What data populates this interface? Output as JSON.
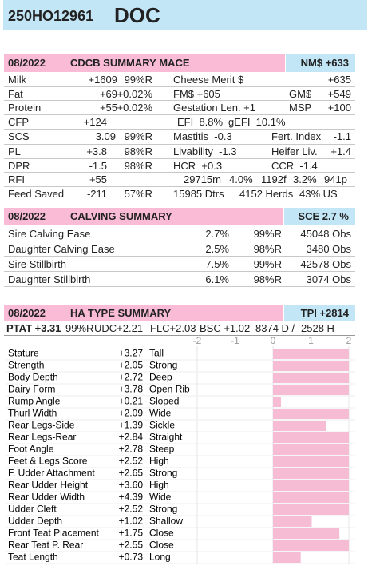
{
  "header": {
    "id": "250HO12961",
    "name": "DOC"
  },
  "mace": {
    "date": "08/2022",
    "title": "CDCB SUMMARY MACE",
    "index": "NM$ +633",
    "rows": [
      [
        "Milk",
        "+1609",
        "99%R",
        "Cheese Merit $",
        "+635"
      ],
      [
        "Fat",
        "+69",
        "+0.02%",
        "FM$ +605",
        "GM$",
        "+549"
      ],
      [
        "Protein",
        "+55",
        "+0.02%",
        "Gestation Len. +1",
        "MSP",
        "+100"
      ],
      [
        "CFP",
        "+124",
        "EFI  8.8%",
        "gEFI  10.1%"
      ],
      [
        "SCS",
        "3.09",
        "99%R",
        "Mastitis  -0.3",
        "Fert. Index",
        "-1.1"
      ],
      [
        "PL",
        "+3.8",
        "98%R",
        "Livability  -1.3",
        "Heifer Liv.",
        "+1.4"
      ],
      [
        "DPR",
        "-1.5",
        "98%R",
        "HCR  +0.3",
        "CCR  -1.4"
      ],
      [
        "RFI",
        "+55",
        "29715m",
        "4.0%",
        "1192f",
        "3.2%",
        "941p"
      ],
      [
        "Feed Saved",
        "-211",
        "57%R",
        "15985 Dtrs",
        "4152 Herds",
        "43% US"
      ]
    ]
  },
  "calving": {
    "date": "08/2022",
    "title": "CALVING SUMMARY",
    "index": "SCE 2.7 %",
    "rows": [
      [
        "Sire Calving Ease",
        "2.7%",
        "99%R",
        "45048 Obs"
      ],
      [
        "Daughter Calving Ease",
        "2.5%",
        "98%R",
        "3480 Obs"
      ],
      [
        "Sire Stillbirth",
        "7.5%",
        "99%R",
        "42578 Obs"
      ],
      [
        "Daughter Stillbirth",
        "6.1%",
        "98%R",
        "3074 Obs"
      ]
    ]
  },
  "type_summary": {
    "date": "08/2022",
    "title": "HA TYPE SUMMARY",
    "index": "TPI +2814",
    "info": [
      "PTAT +3.31",
      "99%R",
      "UDC+2.21",
      "FLC+2.03",
      "BSC +1.02",
      "8374 D /",
      "2528 H"
    ],
    "chart": {
      "type": "bar",
      "xlim": [
        -2,
        2
      ],
      "xticks": [
        -2,
        -1,
        0,
        1,
        2
      ],
      "categories": [
        "Stature",
        "Strength",
        "Body Depth",
        "Dairy Form",
        "Rump Angle",
        "Thurl Width",
        "Rear Legs-Side",
        "Rear Legs-Rear",
        "Foot Angle",
        "Feet & Legs Score",
        "F. Udder Attachment",
        "Rear Udder Height",
        "Rear Udder Width",
        "Udder Cleft",
        "Udder Depth",
        "Front Teat Placement",
        "Rear Teat P. Rear",
        "Teat Length"
      ],
      "values": [
        3.27,
        2.05,
        2.72,
        3.78,
        0.21,
        2.09,
        1.39,
        2.84,
        2.78,
        2.52,
        2.65,
        3.6,
        4.39,
        2.52,
        1.02,
        1.75,
        2.55,
        0.73
      ],
      "value_labels": [
        "+3.27",
        "+2.05",
        "+2.72",
        "+3.78",
        "+0.21",
        "+2.09",
        "+1.39",
        "+2.84",
        "+2.78",
        "+2.52",
        "+2.65",
        "+3.60",
        "+4.39",
        "+2.52",
        "+1.02",
        "+1.75",
        "+2.55",
        "+0.73"
      ],
      "descriptors": [
        "Tall",
        "Strong",
        "Deep",
        "Open Rib",
        "Sloped",
        "Wide",
        "Sickle",
        "Straight",
        "Steep",
        "High",
        "Strong",
        "High",
        "Wide",
        "Strong",
        "Shallow",
        "Close",
        "Close",
        "Long"
      ],
      "color": "#f5bcd3"
    }
  }
}
